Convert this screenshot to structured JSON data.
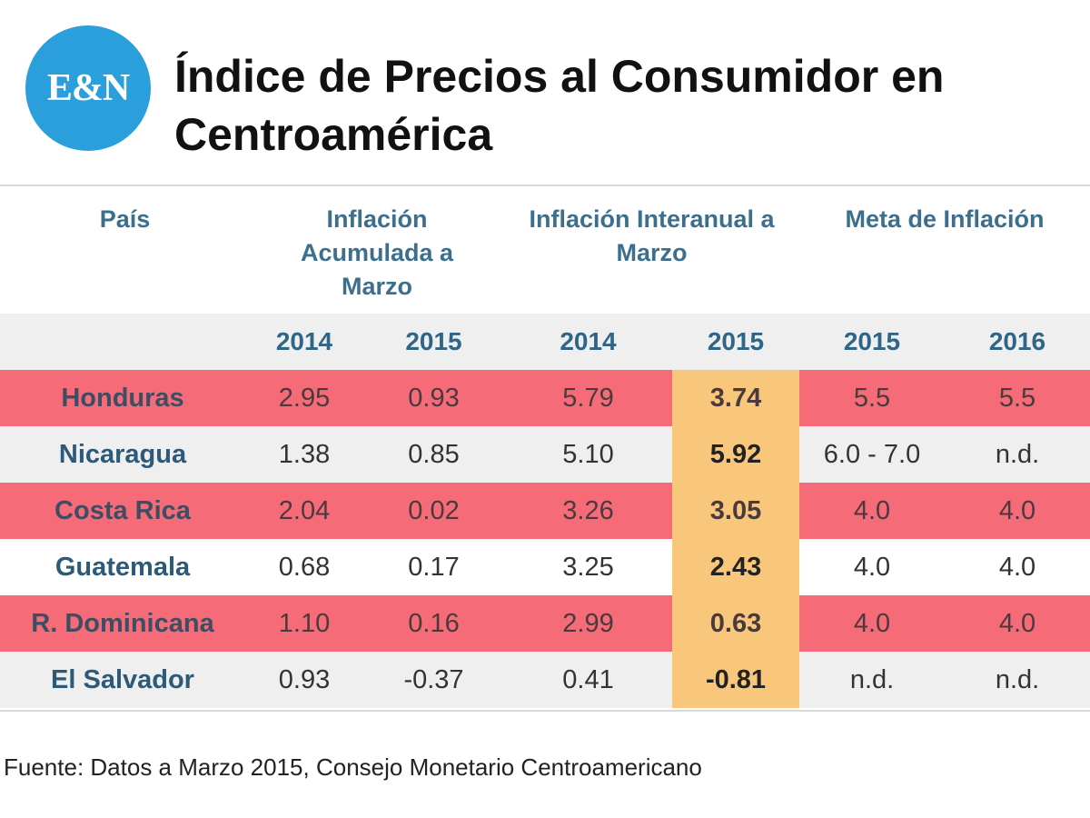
{
  "logo": {
    "text": "E&N",
    "color": "#2a9fdc"
  },
  "title": "Índice de Precios al Consumidor en Centroamérica",
  "chart_data": {
    "type": "table",
    "title": "Índice de Precios al Consumidor en Centroamérica",
    "column_groups": [
      {
        "label": "País"
      },
      {
        "label": "Inflación Acumulada a Marzo"
      },
      {
        "label": "Inflación Interanual a Marzo"
      },
      {
        "label": "Meta de Inflación"
      }
    ],
    "years": [
      "2014",
      "2015",
      "2014",
      "2015",
      "2015",
      "2016"
    ],
    "rows": [
      {
        "country": "Honduras",
        "values": [
          "2.95",
          "0.93",
          "5.79",
          "3.74",
          "5.5",
          "5.5"
        ]
      },
      {
        "country": "Nicaragua",
        "values": [
          "1.38",
          "0.85",
          "5.10",
          "5.92",
          "6.0 - 7.0",
          "n.d."
        ]
      },
      {
        "country": "Costa Rica",
        "values": [
          "2.04",
          "0.02",
          "3.26",
          "3.05",
          "4.0",
          "4.0"
        ]
      },
      {
        "country": "Guatemala",
        "values": [
          "0.68",
          "0.17",
          "3.25",
          "2.43",
          "4.0",
          "4.0"
        ]
      },
      {
        "country": "R. Dominicana",
        "values": [
          "1.10",
          "0.16",
          "2.99",
          "0.63",
          "4.0",
          "4.0"
        ]
      },
      {
        "country": "El Salvador",
        "values": [
          "0.93",
          "-0.37",
          "0.41",
          "-0.81",
          "n.d.",
          "n.d."
        ]
      }
    ],
    "highlight_column": 3,
    "colors": {
      "red_row": "#f66b78",
      "highlight": "#f9c77b",
      "header_text": "#3c6f8e"
    }
  },
  "source": "Fuente: Datos a Marzo 2015, Consejo Monetario Centroamericano"
}
